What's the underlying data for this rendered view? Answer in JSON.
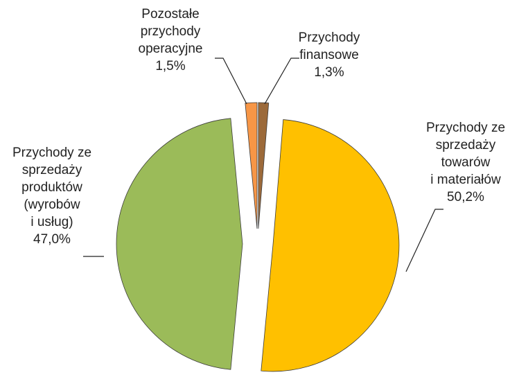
{
  "chart_data": {
    "type": "pie",
    "categories": [
      "Przychody finansowe",
      "Przychody ze sprzedaży towarów i materiałów",
      "Przychody ze sprzedaży produktów (wyrobów i usług)",
      "Pozostałe przychody operacyjne"
    ],
    "values": [
      1.3,
      50.2,
      47.0,
      1.5
    ],
    "value_labels": [
      "1,3%",
      "50,2%",
      "47,0%",
      "1,5%"
    ],
    "colors": [
      "#9c6a3a",
      "#ffc000",
      "#9bbb59",
      "#f79646"
    ]
  }
}
